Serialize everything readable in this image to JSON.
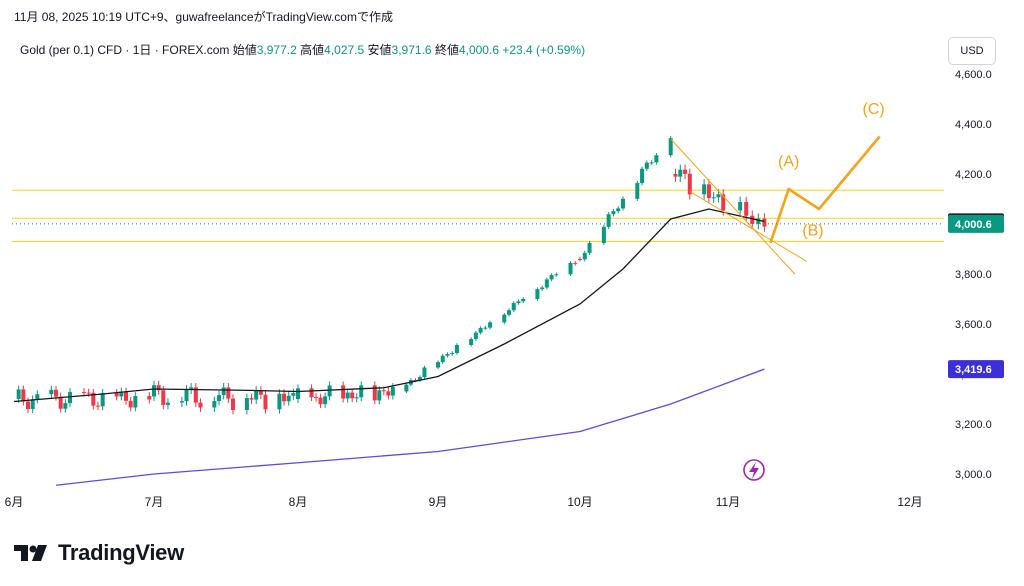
{
  "header": {
    "attribution": "11月 08, 2025 10:19 UTC+9、guwafreelanceがTradingView.comで作成"
  },
  "legend": {
    "symbol": "Gold (per 0.1) CFD · 1日 · FOREX.com",
    "open_label": "始値",
    "open_value": "3,977.2",
    "high_label": "高値",
    "high_value": "4,027.5",
    "low_label": "安値",
    "low_value": "3,971.6",
    "close_label": "終値",
    "close_value": "4,000.6",
    "change": "+23.4 (+0.59%)"
  },
  "currency": "USD",
  "footer": {
    "brand": "TradingView"
  },
  "colors": {
    "up": "#089981",
    "down": "#f23645",
    "ma_short": "#131722",
    "ma_long": "#5b4ce0",
    "wave": "#f7a21b",
    "hline": "#f5d90a",
    "wedge": "#f7a21b",
    "text": "#131722"
  },
  "chart_data": {
    "type": "candlestick",
    "ylim": [
      2960,
      4640
    ],
    "y_ticks": [
      "3,000.0",
      "3,200.0",
      "3,400.0",
      "3,600.0",
      "3,800.0",
      "4,000.0",
      "4,200.0",
      "4,400.0",
      "4,600.0"
    ],
    "y_tick_values": [
      3000,
      3200,
      3400,
      3600,
      3800,
      4000,
      4200,
      4400,
      4600
    ],
    "x_labels": [
      {
        "label": "6月",
        "date": "2025-06-01"
      },
      {
        "label": "7月",
        "date": "2025-07-01"
      },
      {
        "label": "8月",
        "date": "2025-08-01"
      },
      {
        "label": "9月",
        "date": "2025-09-01"
      },
      {
        "label": "10月",
        "date": "2025-10-01"
      },
      {
        "label": "11月",
        "date": "2025-11-01"
      },
      {
        "label": "12月",
        "date": "2025-12-01"
      }
    ],
    "price_labels": [
      {
        "value": 4006.5,
        "text": "4,006.5",
        "bg": "#131722",
        "fg": "#ffffff"
      },
      {
        "value": 4000.6,
        "text": "4,000.6",
        "bg": "#089981",
        "fg": "#ffffff"
      },
      {
        "value": 3419.6,
        "text": "3,419.6",
        "bg": "#3d2fd6",
        "fg": "#ffffff"
      }
    ],
    "horizontal_lines": [
      4135,
      4023,
      3930
    ],
    "current_price": 4000.6,
    "candles_segments": [
      {
        "from": "2025-06-01",
        "to": "2025-06-30",
        "start": 3300,
        "end": 3310,
        "amp": 45
      },
      {
        "from": "2025-07-01",
        "to": "2025-07-31",
        "start": 3310,
        "end": 3300,
        "amp": 50
      },
      {
        "from": "2025-08-01",
        "to": "2025-08-22",
        "start": 3300,
        "end": 3330,
        "amp": 45
      },
      {
        "from": "2025-08-23",
        "to": "2025-09-30",
        "start": 3330,
        "end": 3860,
        "amp": 20
      },
      {
        "from": "2025-10-01",
        "to": "2025-10-20",
        "start": 3860,
        "end": 4360,
        "amp": 25
      },
      {
        "from": "2025-10-21",
        "to": "2025-11-07",
        "start": 4200,
        "end": 3990,
        "amp": 60
      }
    ],
    "ma_short": [
      {
        "date": "2025-06-01",
        "value": 3290
      },
      {
        "date": "2025-06-20",
        "value": 3320
      },
      {
        "date": "2025-07-01",
        "value": 3340
      },
      {
        "date": "2025-07-20",
        "value": 3335
      },
      {
        "date": "2025-08-01",
        "value": 3330
      },
      {
        "date": "2025-08-20",
        "value": 3345
      },
      {
        "date": "2025-09-01",
        "value": 3390
      },
      {
        "date": "2025-09-15",
        "value": 3520
      },
      {
        "date": "2025-10-01",
        "value": 3680
      },
      {
        "date": "2025-10-10",
        "value": 3820
      },
      {
        "date": "2025-10-20",
        "value": 4020
      },
      {
        "date": "2025-10-28",
        "value": 4060
      },
      {
        "date": "2025-11-07",
        "value": 4010
      }
    ],
    "ma_long": [
      {
        "date": "2025-06-10",
        "value": 2955
      },
      {
        "date": "2025-07-01",
        "value": 3000
      },
      {
        "date": "2025-08-01",
        "value": 3045
      },
      {
        "date": "2025-09-01",
        "value": 3090
      },
      {
        "date": "2025-10-01",
        "value": 3170
      },
      {
        "date": "2025-10-20",
        "value": 3280
      },
      {
        "date": "2025-11-07",
        "value": 3419.6
      }
    ],
    "wedge_lines": [
      [
        {
          "date": "2025-10-20",
          "value": 4340
        },
        {
          "date": "2025-11-12",
          "value": 3800
        }
      ],
      [
        {
          "date": "2025-10-24",
          "value": 4130
        },
        {
          "date": "2025-11-14",
          "value": 3850
        }
      ]
    ],
    "wave_path": [
      {
        "date": "2025-11-08",
        "value": 3925
      },
      {
        "date": "2025-11-11",
        "value": 4140
      },
      {
        "date": "2025-11-16",
        "value": 4060
      },
      {
        "date": "2025-11-26",
        "value": 4350
      }
    ],
    "annotations": [
      {
        "text": "(A)",
        "date": "2025-11-11",
        "value": 4230
      },
      {
        "text": "(B)",
        "date": "2025-11-15",
        "value": 3955
      },
      {
        "text": "(C)",
        "date": "2025-11-25",
        "value": 4440
      }
    ]
  }
}
